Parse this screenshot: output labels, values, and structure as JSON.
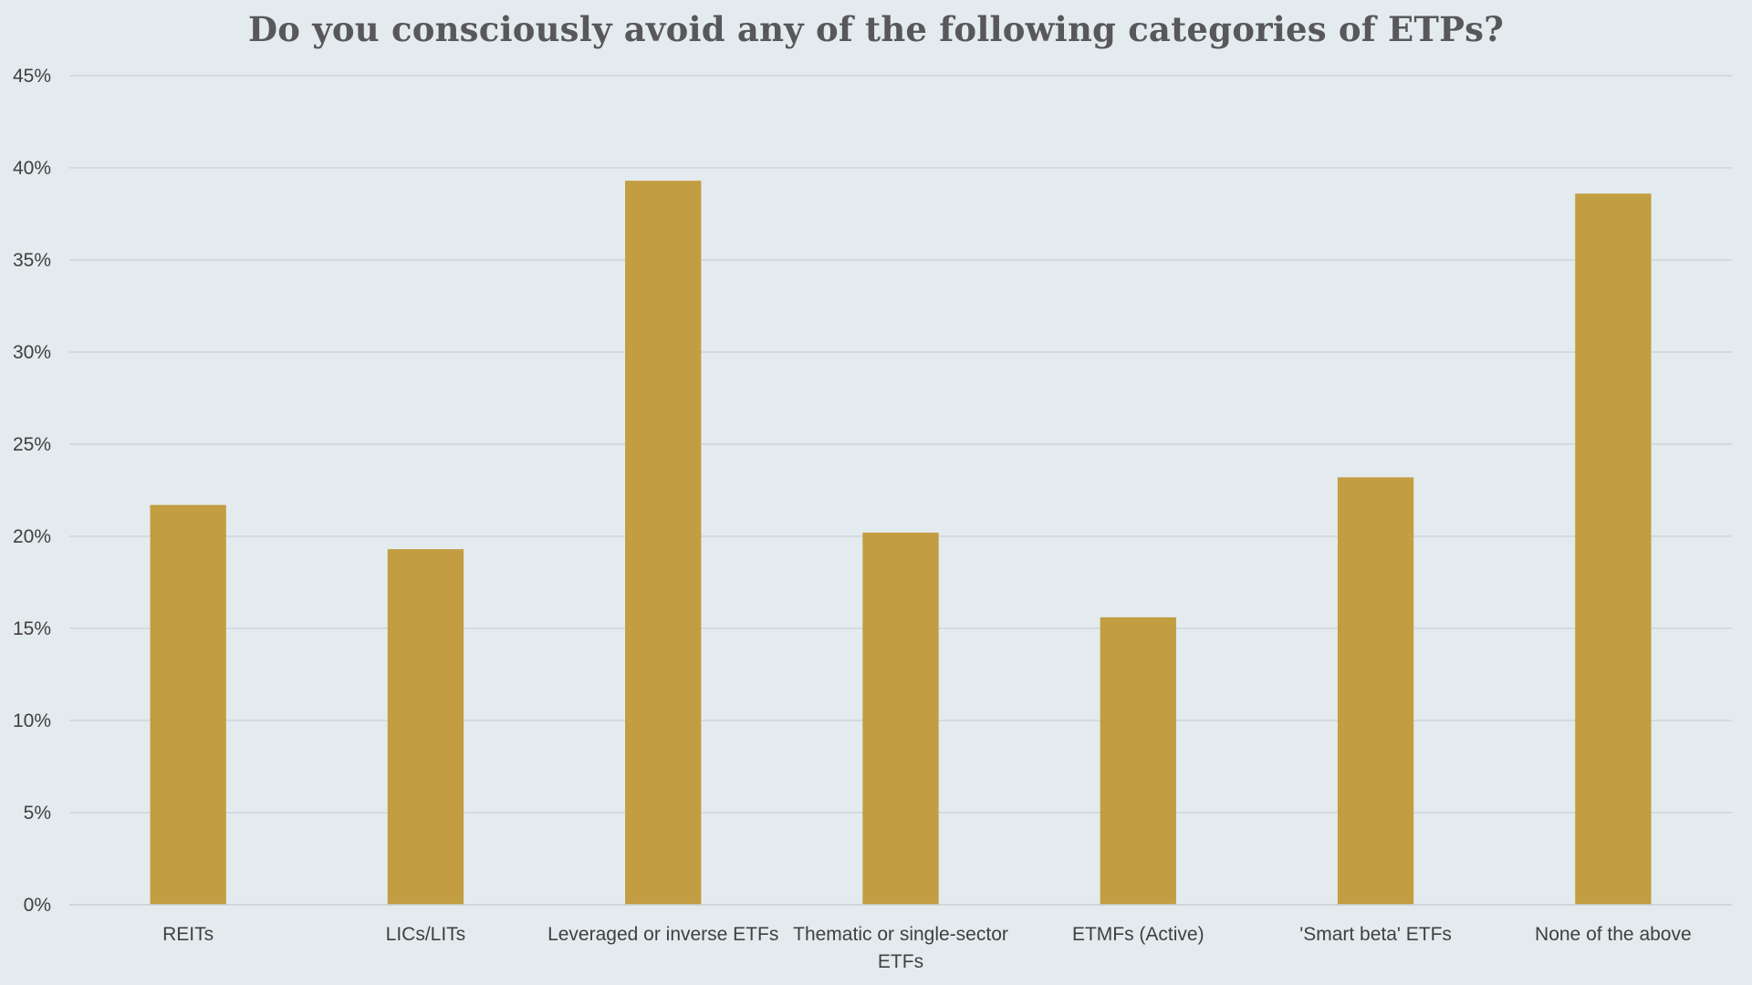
{
  "chart_data": {
    "type": "bar",
    "title": "Do you consciously avoid any of the following categories of ETPs?",
    "xlabel": "",
    "ylabel": "",
    "categories": [
      "REITs",
      "LICs/LITs",
      "Leveraged or inverse ETFs",
      "Thematic or single-sector ETFs",
      "ETMFs (Active)",
      "'Smart beta' ETFs",
      "None of the above"
    ],
    "category_lines": [
      [
        "REITs"
      ],
      [
        "LICs/LITs"
      ],
      [
        "Leveraged or inverse ETFs"
      ],
      [
        "Thematic or single-sector",
        "ETFs"
      ],
      [
        "ETMFs (Active)"
      ],
      [
        "'Smart beta' ETFs"
      ],
      [
        "None of the above"
      ]
    ],
    "values": [
      21.7,
      19.3,
      39.3,
      20.2,
      15.6,
      23.2,
      38.6
    ],
    "value_unit": "percent",
    "ylim": [
      0,
      45
    ],
    "yticks": [
      0,
      5,
      10,
      15,
      20,
      25,
      30,
      35,
      40,
      45
    ],
    "ytick_labels": [
      "0%",
      "5%",
      "10%",
      "15%",
      "20%",
      "25%",
      "30%",
      "35%",
      "40%",
      "45%"
    ],
    "grid": true,
    "legend": "none",
    "bar_color": "#c29d41"
  }
}
